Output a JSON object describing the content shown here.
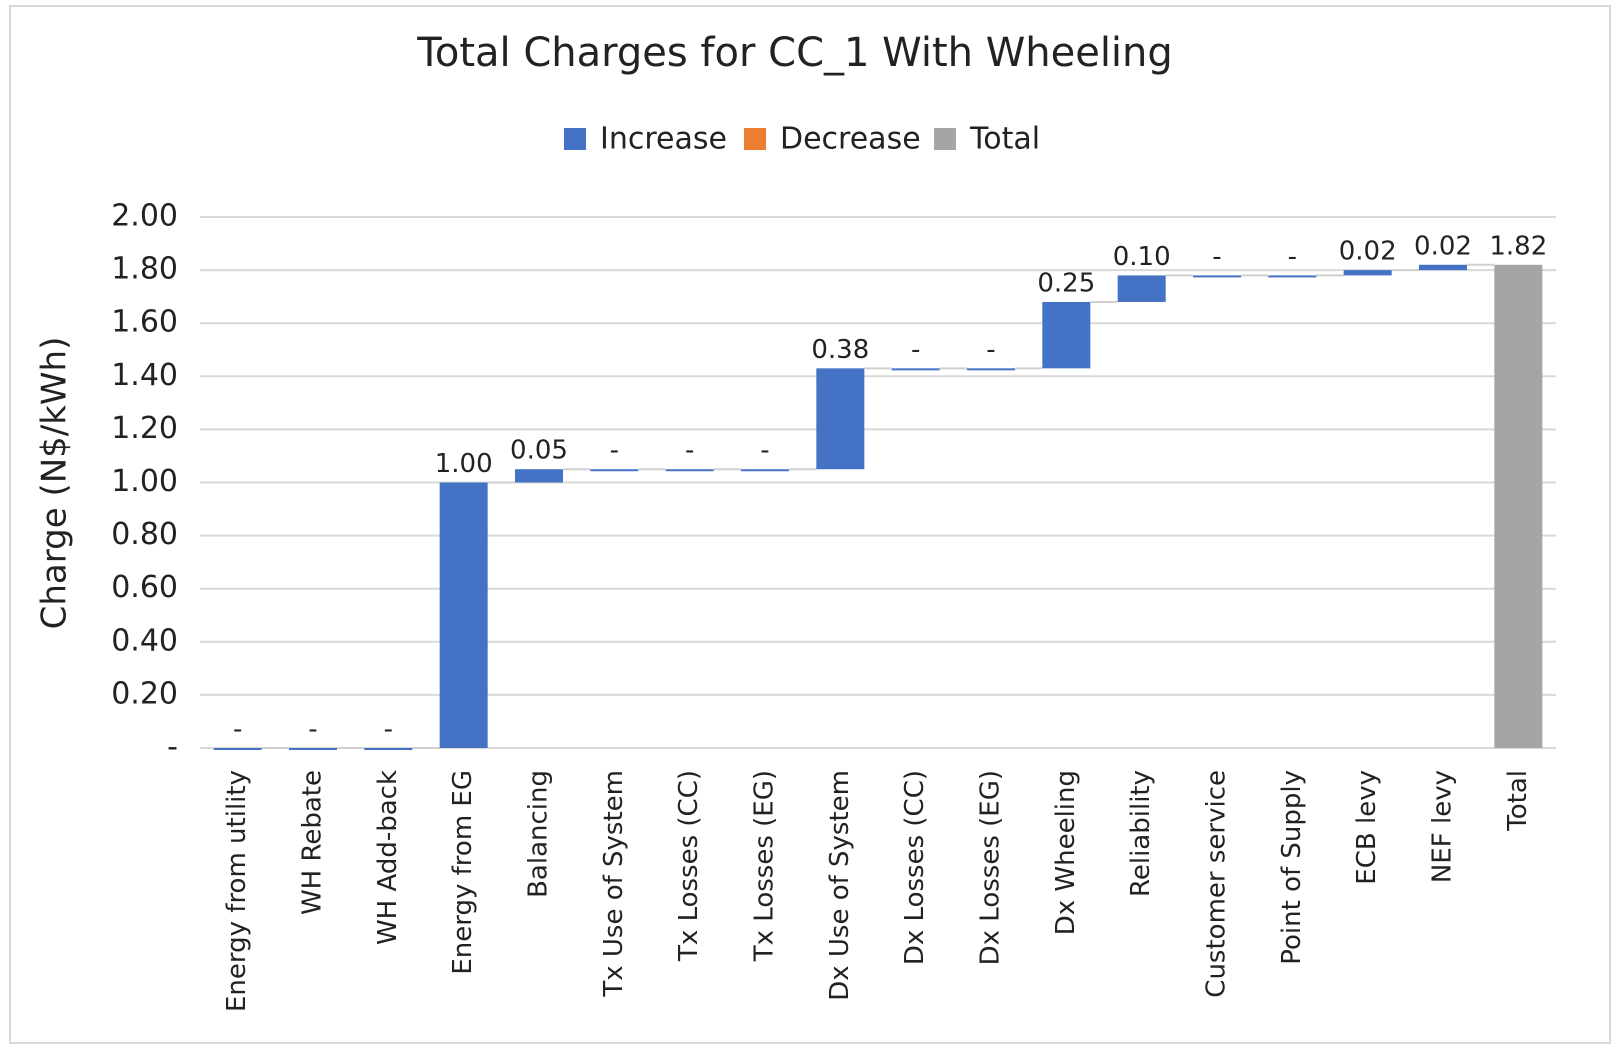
{
  "chart_data": {
    "type": "waterfall",
    "title": "Total Charges for CC_1 With Wheeling",
    "y_label": "Charge (N$/kWh)",
    "legend": [
      {
        "name": "Increase",
        "color": "#4472c4"
      },
      {
        "name": "Decrease",
        "color": "#ed7d31"
      },
      {
        "name": "Total",
        "color": "#a5a5a5"
      }
    ],
    "categories": [
      "Energy from utility",
      "WH Rebate",
      "WH Add-back",
      "Energy from EG",
      "Balancing",
      "Tx Use of System",
      "Tx Losses (CC)",
      "Tx Losses (EG)",
      "Dx Use of System",
      "Dx Losses (CC)",
      "Dx Losses (EG)",
      "Dx Wheeling",
      "Reliability",
      "Customer service",
      "Point of Supply",
      "ECB levy",
      "NEF levy",
      "Total"
    ],
    "values": [
      0,
      0,
      0,
      1.0,
      0.05,
      0,
      0,
      0,
      0.38,
      0,
      0,
      0.25,
      0.1,
      0,
      0,
      0.02,
      0.02,
      1.82
    ],
    "value_labels": [
      "-",
      "-",
      "-",
      "1.00",
      "0.05",
      "-",
      "-",
      "-",
      "0.38",
      "-",
      "-",
      "0.25",
      "0.10",
      "-",
      "-",
      "0.02",
      "0.02",
      "1.82"
    ],
    "is_total": [
      false,
      false,
      false,
      false,
      false,
      false,
      false,
      false,
      false,
      false,
      false,
      false,
      false,
      false,
      false,
      false,
      false,
      true
    ],
    "ylim": [
      0,
      2
    ],
    "yticks": [
      {
        "value": 0,
        "label": "-"
      },
      {
        "value": 0.2,
        "label": "0.20"
      },
      {
        "value": 0.4,
        "label": "0.40"
      },
      {
        "value": 0.6,
        "label": "0.60"
      },
      {
        "value": 0.8,
        "label": "0.80"
      },
      {
        "value": 1.0,
        "label": "1.00"
      },
      {
        "value": 1.2,
        "label": "1.20"
      },
      {
        "value": 1.4,
        "label": "1.40"
      },
      {
        "value": 1.6,
        "label": "1.60"
      },
      {
        "value": 1.8,
        "label": "1.80"
      },
      {
        "value": 2.0,
        "label": "2.00"
      }
    ],
    "grid": true
  }
}
